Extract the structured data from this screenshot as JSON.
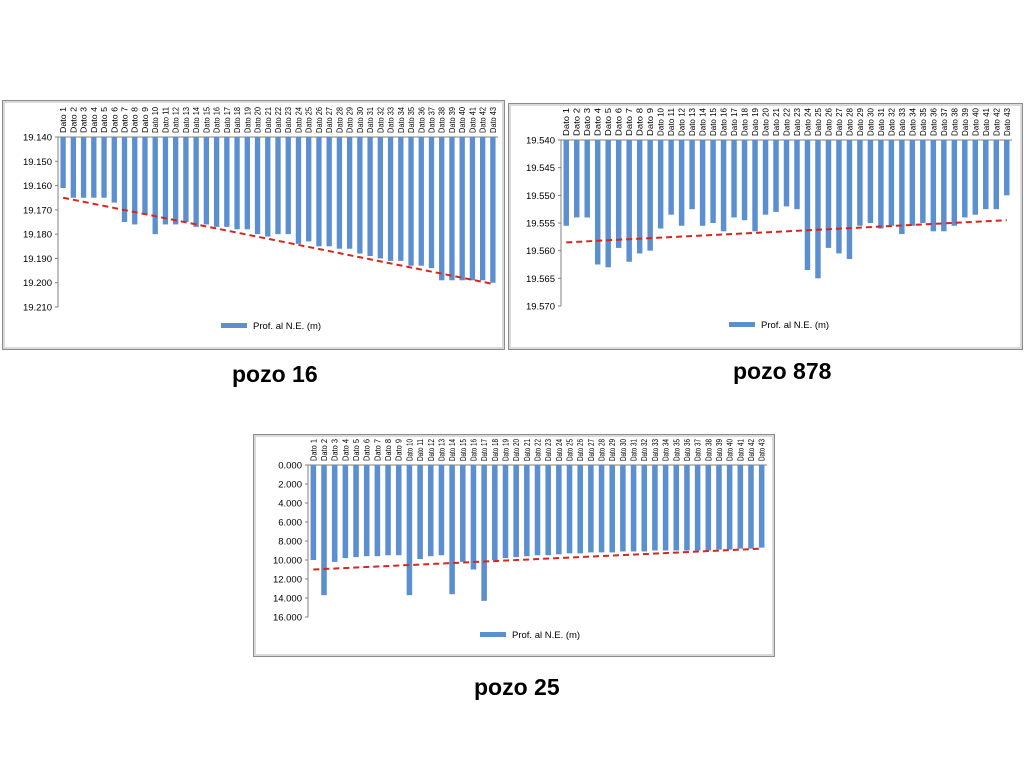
{
  "theme": {
    "bar_color": "#5b8fd0",
    "trend_color": "#d9261c",
    "axis_color": "#808080"
  },
  "charts": [
    {
      "caption": "pozo 16",
      "chart_data": {
        "type": "bar",
        "categories": [
          "Dato 1",
          "Dato 2",
          "Dato 3",
          "Dato 4",
          "Dato 5",
          "Dato 6",
          "Dato 7",
          "Dato 8",
          "Dato 9",
          "Dato 10",
          "Dato 11",
          "Dato 12",
          "Dato 13",
          "Dato 14",
          "Dato 15",
          "Dato 16",
          "Dato 17",
          "Dato 18",
          "Dato 19",
          "Dato 20",
          "Dato 21",
          "Dato 22",
          "Dato 23",
          "Dato 24",
          "Dato 25",
          "Dato 26",
          "Dato 27",
          "Dato 28",
          "Dato 29",
          "Dato 30",
          "Dato 31",
          "Dato 32",
          "Dato 33",
          "Dato 34",
          "Dato 35",
          "Dato 36",
          "Dato 37",
          "Dato 38",
          "Dato 39",
          "Dato 40",
          "Dato 41",
          "Dato 42",
          "Dato 43"
        ],
        "series": [
          {
            "name": "Prof. al N.E. (m)",
            "values": [
              19.161,
              19.165,
              19.165,
              19.165,
              19.165,
              19.167,
              19.175,
              19.176,
              19.172,
              19.18,
              19.176,
              19.176,
              19.175,
              19.177,
              19.176,
              19.177,
              19.177,
              19.178,
              19.178,
              19.18,
              19.181,
              19.18,
              19.18,
              19.184,
              19.183,
              19.185,
              19.185,
              19.186,
              19.186,
              19.188,
              19.189,
              19.19,
              19.191,
              19.191,
              19.193,
              19.193,
              19.194,
              19.199,
              19.199,
              19.199,
              19.199,
              19.199,
              19.2
            ]
          }
        ],
        "y_axis": {
          "min": 19.14,
          "max": 19.21,
          "step": 0.01,
          "decimals": 3,
          "reversed": true
        },
        "y_ticks": [
          "19.140",
          "19.150",
          "19.160",
          "19.170",
          "19.180",
          "19.190",
          "19.200",
          "19.210"
        ],
        "trendline": {
          "start": 19.165,
          "end": 19.2005,
          "style": "dashed"
        },
        "legend": {
          "position": "bottom"
        }
      }
    },
    {
      "caption": "pozo 878",
      "chart_data": {
        "type": "bar",
        "categories": [
          "Dato 1",
          "Dato 2",
          "Dato 3",
          "Dato 4",
          "Dato 5",
          "Dato 6",
          "Dato 7",
          "Dato 8",
          "Dato 9",
          "Dato 10",
          "Dato 11",
          "Dato 12",
          "Dato 13",
          "Dato 14",
          "Dato 15",
          "Dato 16",
          "Dato 17",
          "Dato 18",
          "Dato 19",
          "Dato 20",
          "Dato 21",
          "Dato 22",
          "Dato 23",
          "Dato 24",
          "Dato 25",
          "Dato 26",
          "Dato 27",
          "Dato 28",
          "Dato 29",
          "Dato 30",
          "Dato 31",
          "Dato 32",
          "Dato 33",
          "Dato 34",
          "Dato 35",
          "Dato 36",
          "Dato 37",
          "Dato 38",
          "Dato 39",
          "Dato 40",
          "Dato 41",
          "Dato 42",
          "Dato 43"
        ],
        "series": [
          {
            "name": "Prof. al N.E. (m)",
            "values": [
              19.5555,
              19.554,
              19.554,
              19.5625,
              19.563,
              19.5595,
              19.562,
              19.5605,
              19.56,
              19.556,
              19.5535,
              19.5555,
              19.5525,
              19.5555,
              19.555,
              19.5565,
              19.554,
              19.5545,
              19.5565,
              19.5535,
              19.553,
              19.552,
              19.5525,
              19.5635,
              19.565,
              19.5595,
              19.5605,
              19.5615,
              19.5555,
              19.555,
              19.556,
              19.5555,
              19.557,
              19.5555,
              19.555,
              19.5565,
              19.5565,
              19.5555,
              19.554,
              19.5535,
              19.5525,
              19.5525,
              19.55
            ]
          }
        ],
        "y_axis": {
          "min": 19.54,
          "max": 19.57,
          "step": 0.005,
          "decimals": 3,
          "reversed": true
        },
        "y_ticks": [
          "19.540",
          "19.545",
          "19.550",
          "19.555",
          "19.560",
          "19.565",
          "19.570"
        ],
        "trendline": {
          "start": 19.5585,
          "end": 19.5545,
          "style": "dashed"
        },
        "legend": {
          "position": "bottom"
        }
      }
    },
    {
      "caption": "pozo 25",
      "chart_data": {
        "type": "bar",
        "categories": [
          "Dato 1",
          "Dato 2",
          "Dato 3",
          "Dato 4",
          "Dato 5",
          "Dato 6",
          "Dato 7",
          "Dato 8",
          "Dato 9",
          "Dato 10",
          "Dato 11",
          "Dato 12",
          "Dato 13",
          "Dato 14",
          "Dato 15",
          "Dato 16",
          "Dato 17",
          "Dato 18",
          "Dato 19",
          "Dato 20",
          "Dato 21",
          "Dato 22",
          "Dato 23",
          "Dato 24",
          "Dato 25",
          "Dato 26",
          "Dato 27",
          "Dato 28",
          "Dato 29",
          "Dato 30",
          "Dato 31",
          "Dato 32",
          "Dato 33",
          "Dato 34",
          "Dato 35",
          "Dato 36",
          "Dato 37",
          "Dato 38",
          "Dato 39",
          "Dato 40",
          "Dato 41",
          "Dato 42",
          "Dato 43"
        ],
        "series": [
          {
            "name": "Prof. al N.E. (m)",
            "values": [
              10.0,
              13.7,
              10.2,
              9.8,
              9.7,
              9.6,
              9.6,
              9.5,
              9.5,
              13.7,
              9.9,
              9.6,
              9.5,
              13.6,
              10.2,
              11.0,
              14.3,
              10.0,
              9.8,
              9.7,
              9.6,
              9.5,
              9.5,
              9.4,
              9.3,
              9.3,
              9.2,
              9.2,
              9.2,
              9.1,
              9.1,
              9.1,
              9.0,
              9.0,
              9.0,
              9.0,
              9.0,
              9.0,
              8.9,
              8.9,
              8.8,
              8.8,
              8.7
            ]
          }
        ],
        "y_axis": {
          "min": 0,
          "max": 16,
          "step": 2,
          "decimals": 3,
          "reversed": true
        },
        "y_ticks": [
          "0.000",
          "2.000",
          "4.000",
          "6.000",
          "8.000",
          "10.000",
          "12.000",
          "14.000",
          "16.000"
        ],
        "trendline": {
          "start": 11.0,
          "end": 8.8,
          "style": "dashed"
        },
        "legend": {
          "position": "bottom"
        }
      }
    }
  ]
}
